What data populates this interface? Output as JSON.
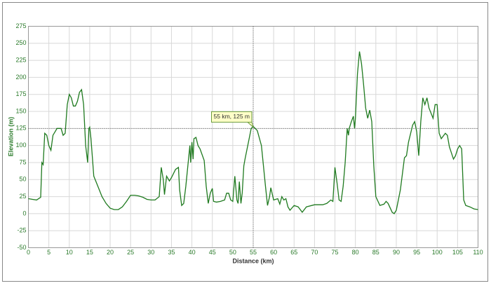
{
  "chart_data": {
    "type": "line",
    "xlabel": "Distance (km)",
    "ylabel": "Elevation (m)",
    "x": [
      0,
      1,
      2,
      3,
      3.3,
      3.6,
      4,
      4.5,
      5,
      5.5,
      6,
      7,
      8,
      8.5,
      9,
      9.5,
      10,
      10.5,
      11,
      11.5,
      12,
      12.5,
      13,
      13.5,
      14,
      14.5,
      14.8,
      15,
      15.3,
      16,
      17,
      18,
      19,
      20,
      21,
      22,
      23,
      24,
      25,
      26,
      27,
      28,
      29,
      30,
      31,
      32,
      32.5,
      33,
      33.3,
      33.8,
      34.5,
      35,
      36,
      36.7,
      37,
      37.5,
      38,
      38.5,
      39,
      39.5,
      39.7,
      40,
      40.3,
      40.5,
      41,
      41.5,
      42,
      43,
      43.5,
      44,
      44.5,
      45,
      45.3,
      46,
      47,
      48,
      48.5,
      49,
      49.5,
      50,
      50.5,
      51,
      51.3,
      51.6,
      52,
      52.3,
      52.7,
      53,
      54,
      54.5,
      55,
      56,
      57,
      58,
      58.5,
      59,
      59.3,
      60,
      61,
      61.5,
      62,
      62.5,
      63,
      63.5,
      64,
      65,
      66,
      67,
      68,
      70,
      72,
      73,
      74,
      74.5,
      75,
      75.5,
      76,
      76.5,
      77,
      77.5,
      78,
      78.3,
      78.5,
      79,
      79.5,
      79.8,
      80,
      80.5,
      81,
      81.5,
      82,
      82.5,
      83,
      83.5,
      84,
      84.5,
      85,
      86,
      87,
      87.5,
      88,
      89,
      89.5,
      90,
      91,
      92,
      92.5,
      93,
      94,
      94.5,
      95,
      95.5,
      96,
      96.5,
      97,
      97.5,
      98,
      99,
      99.5,
      100,
      100.5,
      101,
      102,
      102.5,
      103,
      104,
      104.5,
      105,
      105.5,
      106,
      106.5,
      107,
      108,
      109,
      110
    ],
    "series": [
      {
        "color": "#1f7a1f",
        "values": [
          22,
          21,
          20,
          24,
          75,
          72,
          118,
          115,
          100,
          93,
          115,
          125,
          125,
          115,
          118,
          160,
          175,
          170,
          158,
          158,
          165,
          178,
          182,
          160,
          100,
          75,
          125,
          127,
          110,
          55,
          40,
          25,
          15,
          8,
          6,
          6,
          10,
          18,
          27,
          27,
          26,
          24,
          21,
          20,
          20,
          25,
          68,
          50,
          28,
          55,
          48,
          53,
          65,
          68,
          35,
          12,
          15,
          40,
          70,
          100,
          75,
          105,
          80,
          110,
          112,
          100,
          95,
          78,
          40,
          15,
          30,
          37,
          18,
          17,
          18,
          20,
          30,
          30,
          20,
          18,
          55,
          20,
          15,
          47,
          15,
          30,
          70,
          80,
          110,
          125,
          128,
          122,
          100,
          40,
          12,
          25,
          38,
          20,
          22,
          14,
          25,
          20,
          22,
          10,
          5,
          12,
          10,
          2,
          10,
          13,
          13,
          15,
          20,
          18,
          68,
          45,
          20,
          18,
          40,
          75,
          125,
          115,
          125,
          135,
          143,
          125,
          140,
          205,
          238,
          220,
          190,
          155,
          140,
          152,
          135,
          70,
          25,
          12,
          14,
          18,
          15,
          2,
          0,
          5,
          35,
          82,
          85,
          105,
          130,
          135,
          120,
          85,
          135,
          170,
          160,
          170,
          155,
          140,
          160,
          160,
          118,
          110,
          118,
          115,
          98,
          80,
          85,
          95,
          100,
          95,
          20,
          12,
          10,
          7,
          6
        ]
      }
    ],
    "xlim": [
      0,
      110
    ],
    "xticks": [
      0,
      5,
      10,
      15,
      20,
      25,
      30,
      35,
      40,
      45,
      50,
      55,
      60,
      65,
      70,
      75,
      80,
      85,
      90,
      95,
      100,
      105,
      110
    ],
    "ylim": [
      -50,
      275
    ],
    "yticks": [
      -50,
      -25,
      0,
      25,
      50,
      75,
      100,
      125,
      150,
      175,
      200,
      225,
      250,
      275
    ],
    "grid": true,
    "crosshair": {
      "x": 55,
      "y": 125,
      "label": "55 km, 125 m"
    }
  }
}
